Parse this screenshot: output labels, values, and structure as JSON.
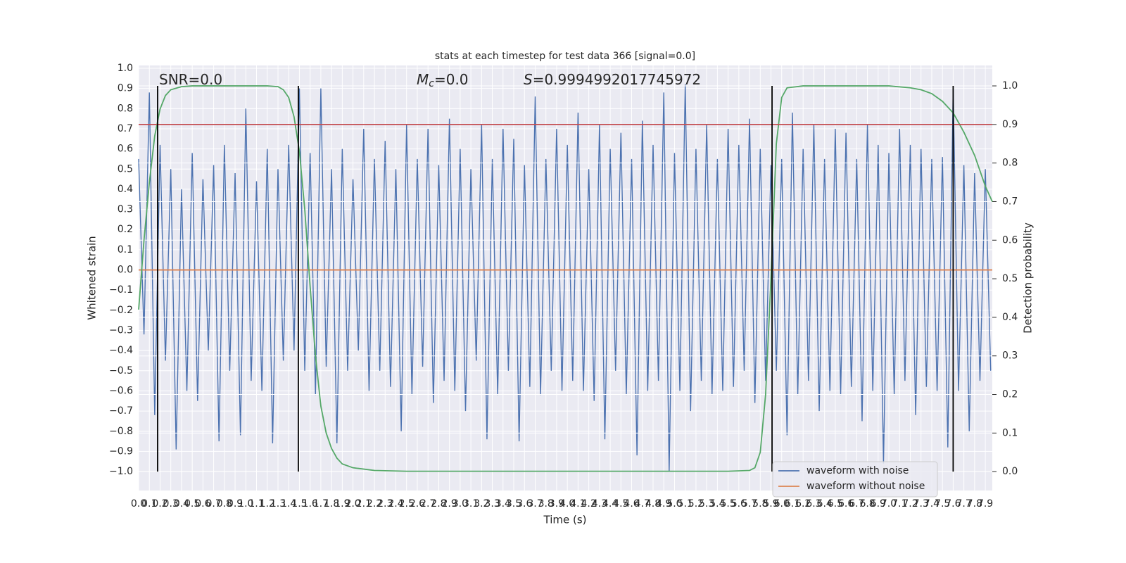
{
  "chart_data": {
    "type": "line",
    "title": "stats at each timestep for test data 366 [signal=0.0]",
    "xlabel": "Time (s)",
    "ylabel": "Whitened strain",
    "y2label": "Detection probability",
    "annotations": [
      {
        "text": "SNR=0.0"
      },
      {
        "symbol": "M",
        "subscript": "c",
        "text": "=0.0"
      },
      {
        "symbol": "S",
        "text": "=0.9994992017745972"
      }
    ],
    "xlim": [
      0,
      7.965
    ],
    "ylim": [
      -1.094,
      1.014
    ],
    "y2lim": [
      -0.049,
      1.053
    ],
    "grid": true,
    "legend": "lower right",
    "xticks": [
      {
        "value": 0,
        "label": "0.0"
      },
      0.1,
      0.2,
      0.3,
      0.4,
      0.5,
      0.6,
      0.7,
      0.8,
      0.9,
      {
        "value": 1,
        "label": "1.0"
      },
      1.1,
      1.2,
      1.3,
      1.4,
      1.5,
      1.6,
      1.7,
      1.8,
      1.9,
      {
        "value": 2,
        "label": "2.0"
      },
      2.1,
      2.2,
      2.3,
      2.4,
      2.5,
      2.6,
      2.7,
      2.8,
      2.9,
      {
        "value": 3,
        "label": "3.0"
      },
      3.1,
      3.2,
      3.3,
      3.4,
      3.5,
      3.6,
      3.7,
      3.8,
      3.9,
      {
        "value": 4,
        "label": "4.0"
      },
      4.1,
      4.2,
      4.3,
      4.4,
      4.5,
      4.6,
      4.7,
      4.8,
      4.9,
      {
        "value": 5,
        "label": "5.0"
      },
      5.1,
      5.2,
      5.3,
      5.4,
      5.5,
      5.6,
      5.7,
      5.8,
      5.9,
      {
        "value": 6,
        "label": "6.0"
      },
      6.1,
      6.2,
      6.3,
      6.4,
      6.5,
      6.6,
      6.7,
      6.8,
      6.9,
      {
        "value": 7,
        "label": "7.0"
      },
      7.1,
      7.2,
      7.3,
      7.4,
      7.5,
      7.6,
      7.7,
      7.8,
      7.9
    ],
    "yticks": [
      {
        "value": -1,
        "label": "−1.0"
      },
      {
        "value": -0.9,
        "label": "−0.9"
      },
      {
        "value": -0.8,
        "label": "−0.8"
      },
      {
        "value": -0.7,
        "label": "−0.7"
      },
      {
        "value": -0.6,
        "label": "−0.6"
      },
      {
        "value": -0.5,
        "label": "−0.5"
      },
      {
        "value": -0.4,
        "label": "−0.4"
      },
      {
        "value": -0.3,
        "label": "−0.3"
      },
      {
        "value": -0.2,
        "label": "−0.2"
      },
      {
        "value": -0.1,
        "label": "−0.1"
      },
      {
        "value": 0,
        "label": "0.0"
      },
      0.1,
      0.2,
      0.3,
      0.4,
      0.5,
      0.6,
      0.7,
      0.8,
      0.9,
      {
        "value": 1,
        "label": "1.0"
      }
    ],
    "y2ticks": [
      {
        "value": 0,
        "label": "0.0"
      },
      0.1,
      0.2,
      0.3,
      0.4,
      0.5,
      0.6,
      0.7,
      0.8,
      0.9,
      {
        "value": 1,
        "label": "1.0"
      }
    ],
    "series": [
      {
        "name": "waveform with noise",
        "color": "#4c72b0",
        "x": [
          0,
          0.05,
          0.1,
          0.15,
          0.2,
          0.25,
          0.3,
          0.35,
          0.4,
          0.45,
          0.5,
          0.55,
          0.6,
          0.65,
          0.7,
          0.75,
          0.8,
          0.85,
          0.9,
          0.95,
          1,
          1.05,
          1.1,
          1.15,
          1.2,
          1.25,
          1.3,
          1.35,
          1.4,
          1.45,
          1.5,
          1.55,
          1.6,
          1.65,
          1.7,
          1.75,
          1.8,
          1.85,
          1.9,
          1.95,
          2,
          2.05,
          2.1,
          2.15,
          2.2,
          2.25,
          2.3,
          2.35,
          2.4,
          2.45,
          2.5,
          2.55,
          2.6,
          2.65,
          2.7,
          2.75,
          2.8,
          2.85,
          2.9,
          2.95,
          3,
          3.05,
          3.1,
          3.15,
          3.2,
          3.25,
          3.3,
          3.35,
          3.4,
          3.45,
          3.5,
          3.55,
          3.6,
          3.65,
          3.7,
          3.75,
          3.8,
          3.85,
          3.9,
          3.95,
          4,
          4.05,
          4.1,
          4.15,
          4.2,
          4.25,
          4.3,
          4.35,
          4.4,
          4.45,
          4.5,
          4.55,
          4.6,
          4.65,
          4.7,
          4.75,
          4.8,
          4.85,
          4.9,
          4.95,
          5,
          5.05,
          5.1,
          5.15,
          5.2,
          5.25,
          5.3,
          5.35,
          5.4,
          5.45,
          5.5,
          5.55,
          5.6,
          5.65,
          5.7,
          5.75,
          5.8,
          5.85,
          5.9,
          5.95,
          6,
          6.05,
          6.1,
          6.15,
          6.2,
          6.25,
          6.3,
          6.35,
          6.4,
          6.45,
          6.5,
          6.55,
          6.6,
          6.65,
          6.7,
          6.75,
          6.8,
          6.85,
          6.9,
          6.95,
          7,
          7.05,
          7.1,
          7.15,
          7.2,
          7.25,
          7.3,
          7.35,
          7.4,
          7.45,
          7.5,
          7.55,
          7.6,
          7.65,
          7.7,
          7.75,
          7.8,
          7.85,
          7.9,
          7.95
        ],
        "values": [
          0.55,
          -0.32,
          0.88,
          -0.72,
          0.62,
          -0.45,
          0.5,
          -0.89,
          0.4,
          -0.6,
          0.58,
          -0.65,
          0.45,
          -0.4,
          0.52,
          -0.85,
          0.62,
          -0.5,
          0.48,
          -0.82,
          0.8,
          -0.55,
          0.44,
          -0.6,
          0.6,
          -0.86,
          0.5,
          -0.45,
          0.62,
          -0.4,
          0.9,
          -0.5,
          0.58,
          -0.62,
          0.9,
          -0.48,
          0.5,
          -0.86,
          0.6,
          -0.5,
          0.45,
          -0.4,
          0.7,
          -0.6,
          0.55,
          -0.5,
          0.64,
          -0.58,
          0.5,
          -0.8,
          0.72,
          -0.62,
          0.55,
          -0.48,
          0.7,
          -0.66,
          0.52,
          -0.55,
          0.75,
          -0.6,
          0.6,
          -0.7,
          0.5,
          -0.45,
          0.72,
          -0.84,
          0.55,
          -0.62,
          0.7,
          -0.5,
          0.65,
          -0.85,
          0.52,
          -0.58,
          0.86,
          -0.62,
          0.55,
          -0.5,
          0.7,
          -0.6,
          0.62,
          -0.55,
          0.78,
          -0.6,
          0.5,
          -0.65,
          0.72,
          -0.84,
          0.6,
          -0.5,
          0.68,
          -0.62,
          0.55,
          -0.92,
          0.74,
          -0.6,
          0.62,
          -0.55,
          0.88,
          -1,
          0.58,
          -0.6,
          0.92,
          -0.7,
          0.6,
          -0.55,
          0.72,
          -0.62,
          0.55,
          -0.6,
          0.7,
          -0.58,
          0.62,
          -0.5,
          0.75,
          -0.66,
          0.6,
          -0.55,
          0.52,
          -0.5,
          0.55,
          -0.82,
          0.78,
          -0.62,
          0.6,
          -0.55,
          0.72,
          -0.7,
          0.55,
          -0.6,
          0.7,
          -0.62,
          0.68,
          -0.58,
          0.55,
          -0.75,
          0.72,
          -0.6,
          0.62,
          -0.96,
          0.58,
          -0.62,
          0.7,
          -0.55,
          0.62,
          -0.72,
          0.6,
          -0.58,
          0.55,
          -0.6,
          0.56,
          -0.88,
          0.9,
          -0.6,
          0.52,
          -0.8,
          0.48,
          -0.55,
          0.5,
          -0.5
        ]
      },
      {
        "name": "waveform without noise",
        "color": "#dd8452",
        "x": [
          0,
          7.965
        ],
        "values": [
          0,
          0
        ]
      },
      {
        "color": "#55a868",
        "axis": "y2",
        "x": [
          0,
          0.05,
          0.1,
          0.15,
          0.2,
          0.25,
          0.3,
          0.4,
          0.5,
          1.2,
          1.3,
          1.35,
          1.4,
          1.45,
          1.5,
          1.55,
          1.6,
          1.65,
          1.7,
          1.75,
          1.8,
          1.85,
          1.9,
          2,
          2.2,
          2.5,
          5.5,
          5.7,
          5.75,
          5.8,
          5.85,
          5.9,
          5.95,
          6,
          6.05,
          6.2,
          7,
          7.2,
          7.3,
          7.4,
          7.5,
          7.6,
          7.7,
          7.8,
          7.9,
          7.965
        ],
        "values": [
          0.42,
          0.6,
          0.75,
          0.87,
          0.94,
          0.975,
          0.99,
          0.998,
          1,
          1,
          0.998,
          0.99,
          0.97,
          0.92,
          0.83,
          0.68,
          0.48,
          0.3,
          0.17,
          0.1,
          0.06,
          0.035,
          0.02,
          0.01,
          0.003,
          0.001,
          0.001,
          0.003,
          0.01,
          0.05,
          0.2,
          0.5,
          0.85,
          0.97,
          0.995,
          1,
          1,
          0.995,
          0.99,
          0.98,
          0.96,
          0.93,
          0.88,
          0.82,
          0.74,
          0.7
        ]
      }
    ],
    "threshold": {
      "value": 0.9,
      "axis": "y2",
      "color": "#c44e52"
    },
    "vlines": {
      "x": [
        0.177,
        1.49,
        5.91,
        7.6
      ],
      "ymin": 0,
      "ymax": 1,
      "axis": "y2",
      "color": "#000000"
    }
  }
}
